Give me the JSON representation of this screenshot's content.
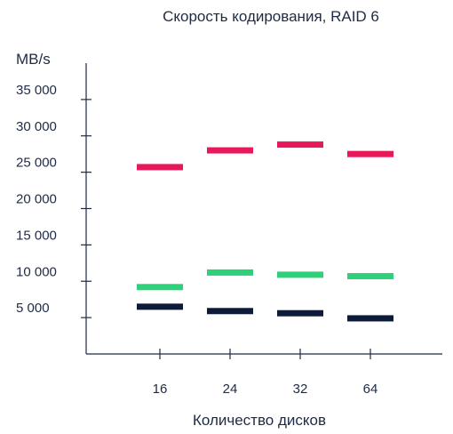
{
  "chart_data": {
    "type": "scatter",
    "title": "Скорость кодирования, RAID 6",
    "ylabel": "MB/s",
    "xlabel": "Количество дисков",
    "categories": [
      "16",
      "24",
      "32",
      "64"
    ],
    "yticks": [
      {
        "value": 5000,
        "label": "5 000"
      },
      {
        "value": 10000,
        "label": "10 000"
      },
      {
        "value": 15000,
        "label": "15 000"
      },
      {
        "value": 20000,
        "label": "20 000"
      },
      {
        "value": 25000,
        "label": "25 000"
      },
      {
        "value": 30000,
        "label": "30 000"
      },
      {
        "value": 35000,
        "label": "35 000"
      }
    ],
    "ylim": [
      0,
      40000
    ],
    "grid": false,
    "series": [
      {
        "color": "#e8195a",
        "values": [
          25700,
          28000,
          28800,
          27500
        ]
      },
      {
        "color": "#2fd07a",
        "values": [
          9200,
          11200,
          10900,
          10700
        ]
      },
      {
        "color": "#0d1b3a",
        "values": [
          6500,
          5900,
          5600,
          4900
        ]
      }
    ]
  }
}
